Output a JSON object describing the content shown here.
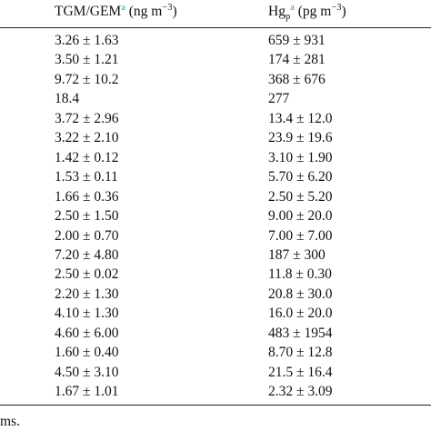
{
  "header": {
    "col1": {
      "label": "TGM/GEM",
      "note": "a",
      "unit": "(ng m",
      "exponent": "−3",
      "close": ")"
    },
    "col2": {
      "label": "Hg",
      "sub": "p",
      "note": "a",
      "unit": "(pg m",
      "exponent": "−3",
      "close": ")"
    }
  },
  "table": {
    "rows": [
      [
        "3.26 ± 1.63",
        "659 ± 931"
      ],
      [
        "3.50 ± 1.21",
        "174 ± 281"
      ],
      [
        "9.72 ± 10.2",
        "368 ± 676"
      ],
      [
        "18.4",
        "277"
      ],
      [
        "3.72 ± 2.96",
        "13.4 ± 12.0"
      ],
      [
        "3.22 ± 2.10",
        "23.9 ± 19.6"
      ],
      [
        "1.42 ± 0.12",
        "3.10 ± 1.90"
      ],
      [
        "1.53 ± 0.11",
        "5.70 ± 6.20"
      ],
      [
        "1.66 ± 0.36",
        "2.50 ± 5.20"
      ],
      [
        "2.50 ± 1.50",
        "9.00 ± 20.0"
      ],
      [
        "2.00 ± 0.70",
        "7.00 ± 7.00"
      ],
      [
        "7.20 ± 4.80",
        "187 ± 300"
      ],
      [
        "2.50 ± 0.02",
        "11.8 ± 0.30"
      ],
      [
        "2.20 ± 1.30",
        "20.8 ± 30.0"
      ],
      [
        "4.10 ± 1.30",
        "16.0 ± 20.0"
      ],
      [
        "4.60 ± 6.00",
        "483 ± 1954"
      ],
      [
        "1.60 ± 0.40",
        "8.70 ± 12.8"
      ],
      [
        "4.50 ± 3.10",
        "21.5 ± 16.4"
      ],
      [
        "1.67 ± 1.01",
        "2.32 ± 3.09"
      ]
    ]
  },
  "footer": {
    "text": "ms."
  }
}
